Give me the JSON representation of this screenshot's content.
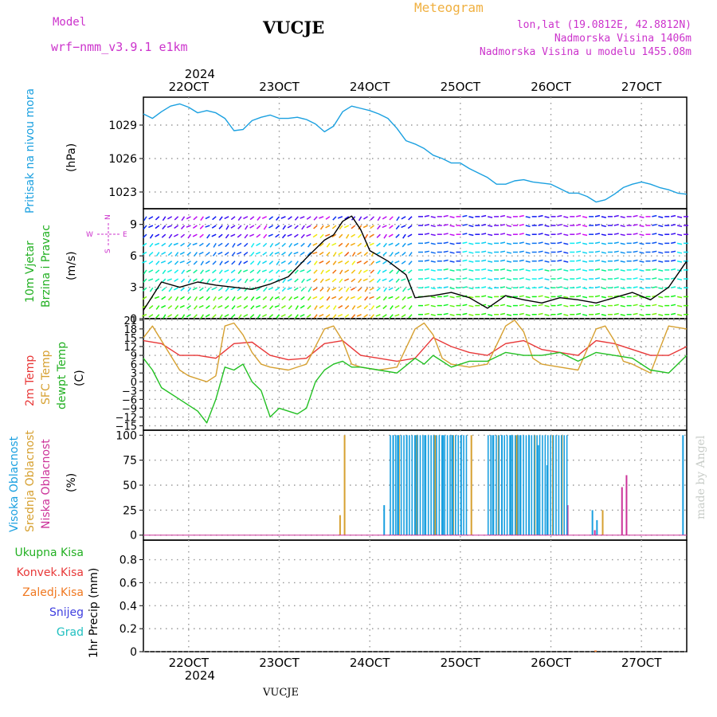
{
  "header": {
    "model_label": "Model",
    "model_name": "wrf−nmm_v3.9.1  e1km",
    "station": "VUCJE",
    "product": "Meteogram",
    "coords": "lon,lat (19.0812E, 42.8812N)",
    "elevation": "Nadmorska Visina 1406m",
    "model_elevation": "Nadmorska Visina u modelu 1455.08m",
    "year": "2024",
    "footer_station": "VUCJE",
    "watermark": "made by Angel"
  },
  "colors": {
    "pressure": "#1aa0e0",
    "temp2m": "#e83838",
    "sfc": "#d6a030",
    "dewpoint": "#22c022",
    "magenta": "#cc33cc",
    "orange_title": "#f0b040"
  },
  "time_axis": {
    "labels": [
      "22OCT",
      "23OCT",
      "24OCT",
      "25OCT",
      "26OCT",
      "27OCT"
    ],
    "range_days": [
      21.5,
      27.5
    ]
  },
  "panels": {
    "pressure": {
      "ylabel_name": "Pritisak na nivou mora",
      "unit": "(hPa)",
      "ticks": [
        "1029",
        "1026",
        "1023"
      ]
    },
    "wind": {
      "ylabel_1": "10m Vjetar",
      "ylabel_2": "Brzina i Pravac",
      "unit": "(m/s)",
      "ticks": [
        "9",
        "6",
        "3",
        "0"
      ],
      "compass": {
        "n": "N",
        "s": "S",
        "w": "W",
        "e": "E"
      }
    },
    "temperature": {
      "label_2m": "2m Temp",
      "label_sfc": "SFC Temp",
      "label_dew": "dewpt Temp",
      "unit": "(C)",
      "ticks": [
        "21",
        "18",
        "15",
        "12",
        "9",
        "6",
        "3",
        "0",
        "−3",
        "−6",
        "−9",
        "−12",
        "−15"
      ]
    },
    "clouds": {
      "label_high": "Visoka Oblacnost",
      "label_mid": "Srednja Oblacnost",
      "label_low": "Niska Oblacnost",
      "unit": "(%)",
      "ticks": [
        "100",
        "75",
        "50",
        "25",
        "0"
      ]
    },
    "precip": {
      "legend": [
        "Ukupna Kisa",
        "Konvek.Kisa",
        "Zaledj.Kisa",
        "Snijeg",
        "Grad"
      ],
      "legend_colors": [
        "#22b022",
        "#e83838",
        "#f07820",
        "#4040e0",
        "#20c0c0"
      ],
      "ylabel": "1hr Precip (mm)",
      "ticks": [
        "0.8",
        "0.6",
        "0.4",
        "0.2",
        "0"
      ]
    }
  },
  "chart_data": [
    {
      "type": "line",
      "title": "Pritisak na nivou mora",
      "ylabel": "(hPa)",
      "ylim": [
        1021.5,
        1031.5
      ],
      "series": [
        {
          "name": "Pritisak na nivou mora",
          "x": [
            21.5,
            21.6,
            21.7,
            21.8,
            21.9,
            22.0,
            22.1,
            22.2,
            22.3,
            22.4,
            22.5,
            22.6,
            22.7,
            22.8,
            22.9,
            23.0,
            23.1,
            23.2,
            23.3,
            23.4,
            23.5,
            23.6,
            23.7,
            23.8,
            23.9,
            24.0,
            24.1,
            24.2,
            24.3,
            24.4,
            24.5,
            24.6,
            24.7,
            24.8,
            24.9,
            25.0,
            25.1,
            25.2,
            25.3,
            25.4,
            25.5,
            25.6,
            25.7,
            25.8,
            25.9,
            26.0,
            26.1,
            26.2,
            26.3,
            26.4,
            26.5,
            26.6,
            26.7,
            26.8,
            26.9,
            27.0,
            27.1,
            27.2,
            27.3,
            27.4,
            27.5
          ],
          "values": [
            1030.0,
            1029.6,
            1030.2,
            1030.7,
            1030.9,
            1030.6,
            1030.1,
            1030.3,
            1030.1,
            1029.6,
            1028.5,
            1028.6,
            1029.4,
            1029.7,
            1029.9,
            1029.6,
            1029.6,
            1029.7,
            1029.5,
            1029.1,
            1028.4,
            1028.9,
            1030.2,
            1030.7,
            1030.5,
            1030.3,
            1030.0,
            1029.6,
            1028.7,
            1027.6,
            1027.3,
            1026.9,
            1026.3,
            1026.0,
            1025.6,
            1025.6,
            1025.1,
            1024.7,
            1024.3,
            1023.7,
            1023.7,
            1024.0,
            1024.1,
            1023.9,
            1023.8,
            1023.7,
            1023.3,
            1022.9,
            1022.9,
            1022.6,
            1022.1,
            1022.3,
            1022.8,
            1023.4,
            1023.7,
            1023.9,
            1023.7,
            1023.4,
            1023.2,
            1022.9,
            1022.8
          ]
        }
      ]
    },
    {
      "type": "line",
      "title": "10m Vjetar Brzina i Pravac",
      "ylabel": "(m/s)",
      "ylim": [
        0,
        10.5
      ],
      "series": [
        {
          "name": "speed",
          "x": [
            21.5,
            21.7,
            21.9,
            22.1,
            22.3,
            22.5,
            22.7,
            22.9,
            23.1,
            23.3,
            23.5,
            23.6,
            23.7,
            23.8,
            23.9,
            24.0,
            24.2,
            24.4,
            24.5,
            24.7,
            24.9,
            25.1,
            25.3,
            25.5,
            25.7,
            25.9,
            26.1,
            26.3,
            26.5,
            26.7,
            26.9,
            27.1,
            27.3,
            27.5
          ],
          "values": [
            0.8,
            3.5,
            3.0,
            3.5,
            3.2,
            3.0,
            2.8,
            3.3,
            4.0,
            5.8,
            7.5,
            8.0,
            9.3,
            9.8,
            8.5,
            6.5,
            5.5,
            4.2,
            2.0,
            2.2,
            2.5,
            2.0,
            1.0,
            2.2,
            1.8,
            1.5,
            2.0,
            1.8,
            1.5,
            2.0,
            2.5,
            1.8,
            3.0,
            5.5
          ]
        }
      ]
    },
    {
      "type": "line",
      "title": "2m Temp, SFC Temp, dewpt Temp",
      "ylabel": "(C)",
      "ylim": [
        -16.5,
        21.5
      ],
      "series": [
        {
          "name": "2m Temp",
          "x": [
            21.5,
            21.7,
            21.9,
            22.1,
            22.3,
            22.5,
            22.7,
            22.9,
            23.1,
            23.3,
            23.5,
            23.7,
            23.9,
            24.1,
            24.3,
            24.5,
            24.7,
            24.9,
            25.1,
            25.3,
            25.5,
            25.7,
            25.9,
            26.1,
            26.3,
            26.5,
            26.7,
            26.9,
            27.1,
            27.3,
            27.5
          ],
          "values": [
            14,
            13,
            9,
            9,
            8,
            13,
            13.5,
            9,
            7.5,
            8,
            13,
            14,
            9,
            8,
            7,
            8,
            15,
            12,
            10,
            9,
            13,
            14,
            11,
            10,
            9,
            14,
            13,
            11,
            9,
            9,
            12
          ]
        },
        {
          "name": "SFC Temp",
          "x": [
            21.5,
            21.6,
            21.7,
            21.9,
            22.0,
            22.2,
            22.3,
            22.4,
            22.5,
            22.6,
            22.7,
            22.8,
            22.9,
            23.1,
            23.3,
            23.5,
            23.6,
            23.7,
            23.8,
            23.9,
            24.1,
            24.3,
            24.5,
            24.6,
            24.7,
            24.8,
            24.9,
            25.1,
            25.3,
            25.5,
            25.6,
            25.7,
            25.8,
            25.9,
            26.1,
            26.3,
            26.5,
            26.6,
            26.7,
            26.8,
            26.9,
            27.1,
            27.3,
            27.5
          ],
          "values": [
            15,
            19,
            14,
            4,
            2,
            0,
            2,
            19,
            20,
            16,
            10,
            6,
            5,
            4,
            6,
            18,
            19,
            14,
            6,
            5,
            4,
            5,
            18,
            20,
            16,
            8,
            6,
            5,
            6,
            19,
            21,
            17,
            8,
            6,
            5,
            4,
            18,
            19,
            14,
            7,
            6,
            3,
            19,
            18
          ]
        },
        {
          "name": "dewpt Temp",
          "x": [
            21.5,
            21.6,
            21.7,
            21.9,
            22.0,
            22.1,
            22.2,
            22.3,
            22.4,
            22.5,
            22.6,
            22.7,
            22.8,
            22.9,
            23.0,
            23.1,
            23.2,
            23.3,
            23.4,
            23.5,
            23.6,
            23.7,
            23.8,
            23.9,
            24.1,
            24.3,
            24.5,
            24.6,
            24.7,
            24.9,
            25.1,
            25.3,
            25.5,
            25.7,
            25.9,
            26.1,
            26.3,
            26.5,
            26.7,
            26.9,
            27.1,
            27.3,
            27.5
          ],
          "values": [
            8,
            4,
            -2,
            -6,
            -8,
            -10,
            -14,
            -6,
            5,
            4,
            6,
            0,
            -3,
            -12,
            -9,
            -10,
            -11,
            -9,
            0,
            4,
            6,
            7,
            5,
            5,
            4,
            3,
            8,
            6,
            9,
            5,
            7,
            7,
            10,
            9,
            9,
            10,
            7,
            10,
            9,
            8,
            4,
            3,
            9
          ]
        }
      ]
    },
    {
      "type": "bar",
      "title": "Visoka Oblacnost, Srednja Oblacnost, Niska Oblacnost",
      "ylabel": "(%)",
      "ylim": [
        -5,
        105
      ],
      "note": "Cloud cover bars; 100% bands roughly 24.2–25.1 and 25.3–26.2",
      "series": [
        {
          "name": "Visoka Oblacnost",
          "x": [
            24.15,
            24.25,
            24.3,
            24.4,
            24.5,
            24.6,
            24.7,
            24.8,
            24.9,
            25.0,
            25.35,
            25.45,
            25.55,
            25.65,
            25.75,
            25.85,
            25.95,
            26.45,
            26.5,
            27.45
          ],
          "values": [
            30,
            100,
            100,
            100,
            100,
            100,
            100,
            100,
            100,
            100,
            100,
            100,
            100,
            100,
            100,
            90,
            70,
            25,
            15,
            100
          ]
        },
        {
          "name": "Srednja Oblacnost",
          "x": [
            23.65,
            23.7,
            24.3,
            24.5,
            24.7,
            24.9,
            25.1,
            25.4,
            25.6,
            25.8,
            26.0,
            26.1,
            26.55
          ],
          "values": [
            20,
            100,
            100,
            100,
            100,
            100,
            100,
            100,
            100,
            100,
            100,
            100,
            25
          ]
        },
        {
          "name": "Niska Oblacnost",
          "x": [
            26.15,
            26.45,
            26.75,
            26.8
          ],
          "values": [
            30,
            5,
            48,
            60
          ]
        }
      ]
    },
    {
      "type": "bar",
      "title": "1hr Precip",
      "ylabel": "(mm)",
      "ylim": [
        0,
        0.97
      ],
      "series": [
        {
          "name": "Zaledj.Kisa",
          "x": [
            26.48
          ],
          "values": [
            0.01
          ]
        }
      ]
    }
  ]
}
